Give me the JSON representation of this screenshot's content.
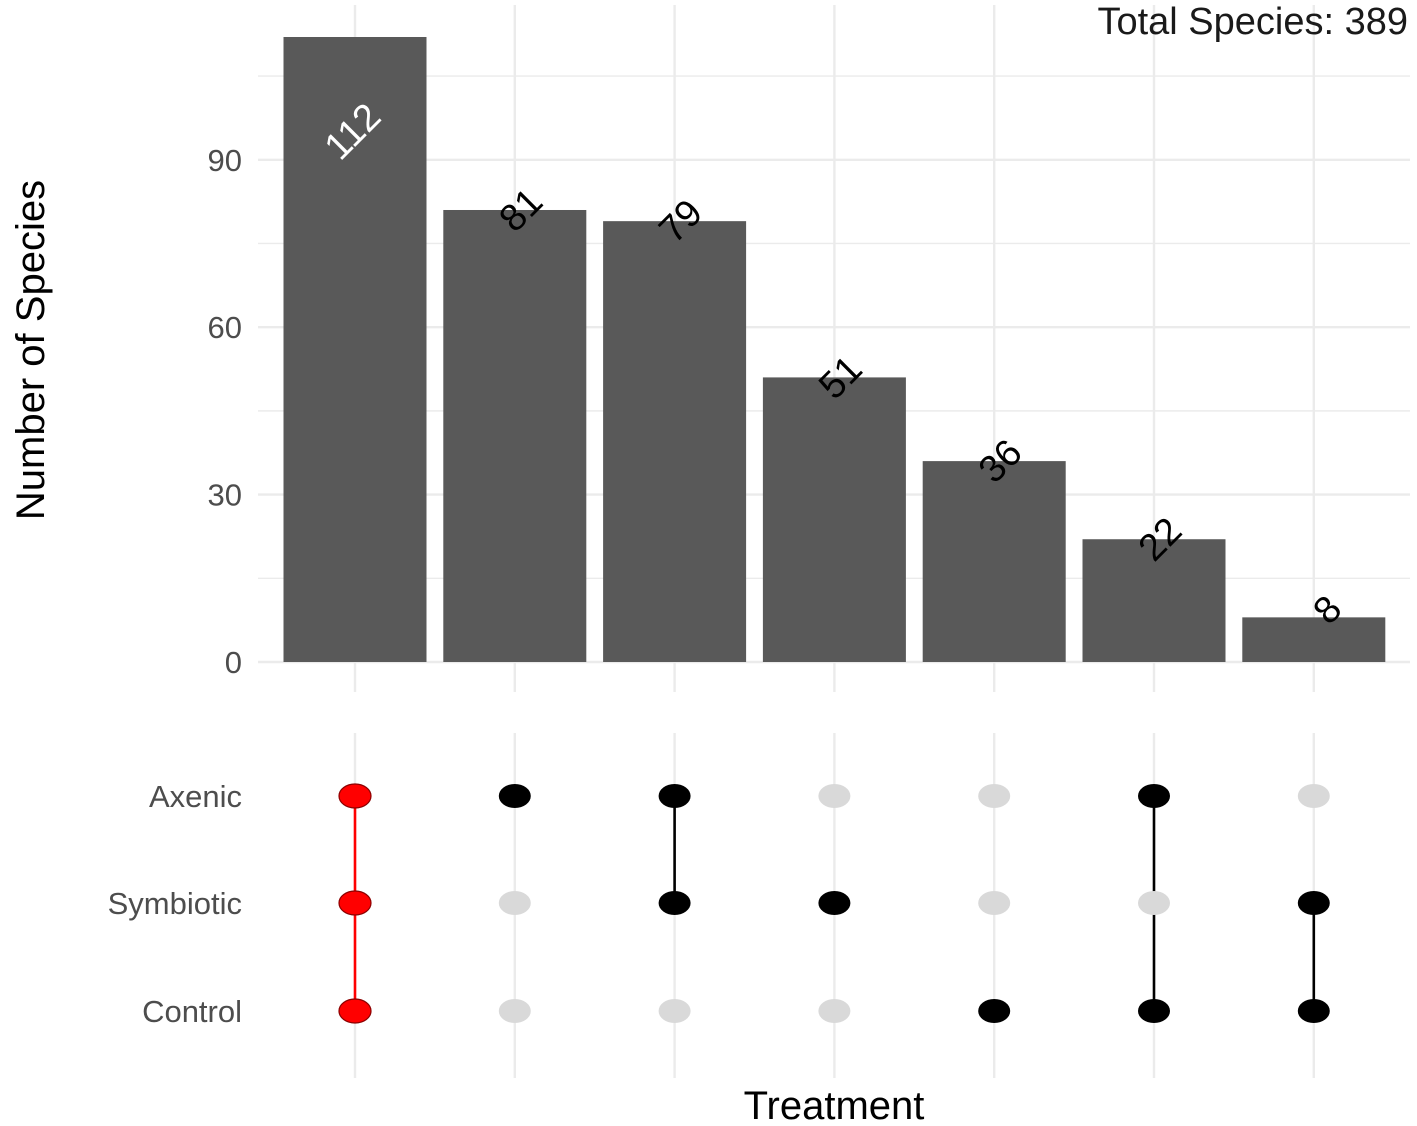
{
  "chart_data": {
    "type": "upset",
    "ylabel": "Number of Species",
    "xlabel": "Treatment",
    "total_label": "Total Species: 389",
    "ylim": [
      0,
      112
    ],
    "yticks": [
      "0",
      "30",
      "60",
      "90"
    ],
    "ytick_values": [
      0,
      30,
      60,
      90
    ],
    "sets": [
      "Axenic",
      "Symbiotic",
      "Control"
    ],
    "bars": [
      {
        "value": 112,
        "label": "112",
        "members": [
          true,
          true,
          true
        ],
        "highlight": true
      },
      {
        "value": 81,
        "label": "81",
        "members": [
          true,
          false,
          false
        ],
        "highlight": false
      },
      {
        "value": 79,
        "label": "79",
        "members": [
          true,
          true,
          false
        ],
        "highlight": false
      },
      {
        "value": 51,
        "label": "51",
        "members": [
          false,
          true,
          false
        ],
        "highlight": false
      },
      {
        "value": 36,
        "label": "36",
        "members": [
          false,
          false,
          true
        ],
        "highlight": false
      },
      {
        "value": 22,
        "label": "22",
        "members": [
          true,
          false,
          true
        ],
        "highlight": false
      },
      {
        "value": 8,
        "label": "8",
        "members": [
          false,
          true,
          true
        ],
        "highlight": false
      }
    ],
    "colors": {
      "bar": "#595959",
      "highlight": "#ff0000",
      "active_dot": "#000000",
      "inactive_dot": "#d9d9d9",
      "grid": "#ebebeb",
      "label_inside": "#ffffff",
      "label_outside": "#000000"
    }
  }
}
